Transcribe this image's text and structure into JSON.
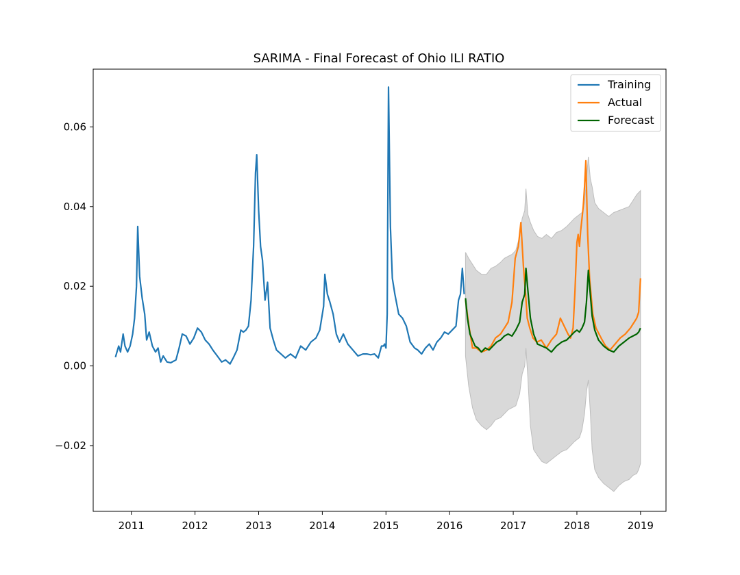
{
  "chart_data": {
    "type": "line",
    "title": "SARIMA - Final Forecast of Ohio ILI RATIO",
    "xlabel": "",
    "ylabel": "",
    "xlim": [
      2010.4,
      2019.4
    ],
    "ylim": [
      -0.0365,
      0.0745
    ],
    "x_ticks": [
      2011,
      2012,
      2013,
      2014,
      2015,
      2016,
      2017,
      2018,
      2019
    ],
    "x_tick_labels": [
      "2011",
      "2012",
      "2013",
      "2014",
      "2015",
      "2016",
      "2017",
      "2018",
      "2019"
    ],
    "y_ticks": [
      -0.02,
      0.0,
      0.02,
      0.04,
      0.06
    ],
    "y_tick_labels": [
      "−0.02",
      "0.00",
      "0.02",
      "0.04",
      "0.06"
    ],
    "grid": false,
    "legend_position": "top-right",
    "series": [
      {
        "name": "Training",
        "color": "#1f77b4",
        "x": [
          2010.75,
          2010.8,
          2010.83,
          2010.87,
          2010.9,
          2010.94,
          2010.98,
          2011.02,
          2011.05,
          2011.08,
          2011.1,
          2011.13,
          2011.17,
          2011.21,
          2011.24,
          2011.28,
          2011.33,
          2011.38,
          2011.42,
          2011.46,
          2011.5,
          2011.56,
          2011.62,
          2011.7,
          2011.75,
          2011.8,
          2011.86,
          2011.92,
          2011.98,
          2012.04,
          2012.1,
          2012.16,
          2012.22,
          2012.28,
          2012.35,
          2012.42,
          2012.48,
          2012.55,
          2012.6,
          2012.66,
          2012.72,
          2012.76,
          2012.8,
          2012.84,
          2012.88,
          2012.92,
          2012.95,
          2012.97,
          2013.0,
          2013.03,
          2013.06,
          2013.1,
          2013.14,
          2013.18,
          2013.23,
          2013.28,
          2013.35,
          2013.42,
          2013.5,
          2013.58,
          2013.66,
          2013.74,
          2013.82,
          2013.9,
          2013.96,
          2014.02,
          2014.04,
          2014.08,
          2014.12,
          2014.17,
          2014.22,
          2014.27,
          2014.33,
          2014.4,
          2014.48,
          2014.56,
          2014.64,
          2014.7,
          2014.76,
          2014.82,
          2014.88,
          2014.93,
          2014.96,
          2014.98,
          2015.0,
          2015.02,
          2015.04,
          2015.07,
          2015.1,
          2015.14,
          2015.2,
          2015.26,
          2015.32,
          2015.38,
          2015.45,
          2015.5,
          2015.56,
          2015.62,
          2015.68,
          2015.74,
          2015.8,
          2015.86,
          2015.92,
          2015.98,
          2016.04,
          2016.1,
          2016.14,
          2016.17,
          2016.2,
          2016.23
        ],
        "values": [
          0.0022,
          0.005,
          0.0035,
          0.008,
          0.005,
          0.0035,
          0.005,
          0.008,
          0.012,
          0.02,
          0.035,
          0.0225,
          0.017,
          0.013,
          0.0065,
          0.0085,
          0.005,
          0.0035,
          0.0045,
          0.001,
          0.0025,
          0.001,
          0.0008,
          0.0015,
          0.0045,
          0.008,
          0.0075,
          0.0055,
          0.007,
          0.0095,
          0.0085,
          0.0065,
          0.0055,
          0.004,
          0.0025,
          0.001,
          0.0015,
          0.0005,
          0.002,
          0.004,
          0.009,
          0.0085,
          0.009,
          0.01,
          0.0165,
          0.03,
          0.0485,
          0.053,
          0.039,
          0.03,
          0.0265,
          0.0165,
          0.021,
          0.0095,
          0.0065,
          0.004,
          0.003,
          0.002,
          0.003,
          0.002,
          0.005,
          0.004,
          0.006,
          0.007,
          0.009,
          0.015,
          0.023,
          0.018,
          0.016,
          0.013,
          0.008,
          0.006,
          0.008,
          0.0055,
          0.004,
          0.0025,
          0.003,
          0.003,
          0.0028,
          0.003,
          0.002,
          0.005,
          0.005,
          0.0055,
          0.0045,
          0.013,
          0.07,
          0.035,
          0.022,
          0.018,
          0.013,
          0.012,
          0.01,
          0.006,
          0.0045,
          0.004,
          0.003,
          0.0045,
          0.0055,
          0.004,
          0.006,
          0.007,
          0.0085,
          0.008,
          0.009,
          0.01,
          0.0165,
          0.018,
          0.0245,
          0.018
        ]
      },
      {
        "name": "Actual",
        "color": "#ff7f0e",
        "x": [
          2016.25,
          2016.3,
          2016.36,
          2016.42,
          2016.5,
          2016.58,
          2016.65,
          2016.72,
          2016.8,
          2016.86,
          2016.92,
          2016.98,
          2017.03,
          2017.08,
          2017.12,
          2017.16,
          2017.19,
          2017.22,
          2017.26,
          2017.31,
          2017.37,
          2017.44,
          2017.52,
          2017.6,
          2017.68,
          2017.74,
          2017.8,
          2017.86,
          2017.9,
          2017.94,
          2017.97,
          2018.0,
          2018.02,
          2018.04,
          2018.06,
          2018.08,
          2018.1,
          2018.12,
          2018.14,
          2018.17,
          2018.2,
          2018.25,
          2018.3,
          2018.38,
          2018.45,
          2018.52,
          2018.6,
          2018.68,
          2018.76,
          2018.84,
          2018.9,
          2018.94,
          2018.97,
          2019.0
        ],
        "values": [
          0.0165,
          0.0105,
          0.0045,
          0.0045,
          0.0035,
          0.004,
          0.005,
          0.007,
          0.008,
          0.0095,
          0.011,
          0.016,
          0.027,
          0.03,
          0.036,
          0.025,
          0.019,
          0.012,
          0.0095,
          0.007,
          0.006,
          0.0065,
          0.0045,
          0.0065,
          0.008,
          0.012,
          0.01,
          0.008,
          0.007,
          0.0095,
          0.019,
          0.031,
          0.033,
          0.03,
          0.034,
          0.037,
          0.04,
          0.045,
          0.0515,
          0.033,
          0.022,
          0.013,
          0.0095,
          0.007,
          0.005,
          0.004,
          0.0055,
          0.007,
          0.008,
          0.0095,
          0.011,
          0.012,
          0.0135,
          0.022
        ]
      },
      {
        "name": "Forecast",
        "color": "#006400",
        "x": [
          2016.25,
          2016.28,
          2016.32,
          2016.36,
          2016.4,
          2016.45,
          2016.5,
          2016.56,
          2016.62,
          2016.68,
          2016.74,
          2016.8,
          2016.86,
          2016.92,
          2016.98,
          2017.04,
          2017.1,
          2017.14,
          2017.18,
          2017.2,
          2017.23,
          2017.27,
          2017.32,
          2017.38,
          2017.45,
          2017.52,
          2017.6,
          2017.68,
          2017.76,
          2017.84,
          2017.9,
          2017.96,
          2018.0,
          2018.04,
          2018.08,
          2018.12,
          2018.15,
          2018.18,
          2018.21,
          2018.24,
          2018.28,
          2018.34,
          2018.42,
          2018.5,
          2018.58,
          2018.66,
          2018.74,
          2018.82,
          2018.88,
          2018.94,
          2018.97,
          2019.0
        ],
        "values": [
          0.017,
          0.012,
          0.008,
          0.0065,
          0.005,
          0.0045,
          0.0035,
          0.0045,
          0.004,
          0.005,
          0.006,
          0.0065,
          0.0075,
          0.008,
          0.0075,
          0.009,
          0.011,
          0.016,
          0.018,
          0.0245,
          0.019,
          0.012,
          0.008,
          0.0055,
          0.005,
          0.0045,
          0.0035,
          0.005,
          0.006,
          0.0065,
          0.0075,
          0.0085,
          0.009,
          0.0085,
          0.0095,
          0.011,
          0.016,
          0.024,
          0.018,
          0.0125,
          0.009,
          0.0065,
          0.005,
          0.004,
          0.0035,
          0.005,
          0.006,
          0.007,
          0.0075,
          0.008,
          0.0085,
          0.0095
        ]
      }
    ],
    "confidence_band": {
      "color": "#d9d9d9",
      "x": [
        2016.25,
        2016.3,
        2016.36,
        2016.42,
        2016.5,
        2016.58,
        2016.65,
        2016.72,
        2016.8,
        2016.86,
        2016.92,
        2016.98,
        2017.04,
        2017.1,
        2017.14,
        2017.18,
        2017.2,
        2017.23,
        2017.27,
        2017.32,
        2017.38,
        2017.45,
        2017.52,
        2017.6,
        2017.68,
        2017.76,
        2017.84,
        2017.9,
        2017.96,
        2018.0,
        2018.04,
        2018.08,
        2018.12,
        2018.15,
        2018.18,
        2018.21,
        2018.24,
        2018.28,
        2018.34,
        2018.42,
        2018.5,
        2018.58,
        2018.66,
        2018.74,
        2018.82,
        2018.88,
        2018.94,
        2018.97,
        2019.0
      ],
      "upper": [
        0.0285,
        0.027,
        0.0255,
        0.024,
        0.023,
        0.023,
        0.0245,
        0.025,
        0.026,
        0.027,
        0.0275,
        0.028,
        0.029,
        0.0325,
        0.037,
        0.039,
        0.0445,
        0.038,
        0.036,
        0.034,
        0.0325,
        0.032,
        0.033,
        0.032,
        0.0335,
        0.034,
        0.035,
        0.036,
        0.037,
        0.0375,
        0.038,
        0.0385,
        0.041,
        0.047,
        0.0525,
        0.047,
        0.045,
        0.041,
        0.0395,
        0.0385,
        0.0375,
        0.0385,
        0.039,
        0.0395,
        0.04,
        0.0415,
        0.043,
        0.0435,
        0.044
      ],
      "lower": [
        0.0025,
        -0.005,
        -0.0105,
        -0.0135,
        -0.015,
        -0.016,
        -0.015,
        -0.0135,
        -0.013,
        -0.012,
        -0.011,
        -0.0105,
        -0.01,
        -0.007,
        -0.002,
        0.0,
        0.0045,
        -0.003,
        -0.015,
        -0.021,
        -0.0225,
        -0.024,
        -0.0245,
        -0.0235,
        -0.0225,
        -0.0215,
        -0.021,
        -0.02,
        -0.019,
        -0.0185,
        -0.018,
        -0.016,
        -0.012,
        -0.0065,
        -0.0035,
        -0.0115,
        -0.021,
        -0.026,
        -0.028,
        -0.0295,
        -0.0305,
        -0.0315,
        -0.03,
        -0.029,
        -0.0285,
        -0.0275,
        -0.027,
        -0.026,
        -0.0245
      ]
    }
  }
}
